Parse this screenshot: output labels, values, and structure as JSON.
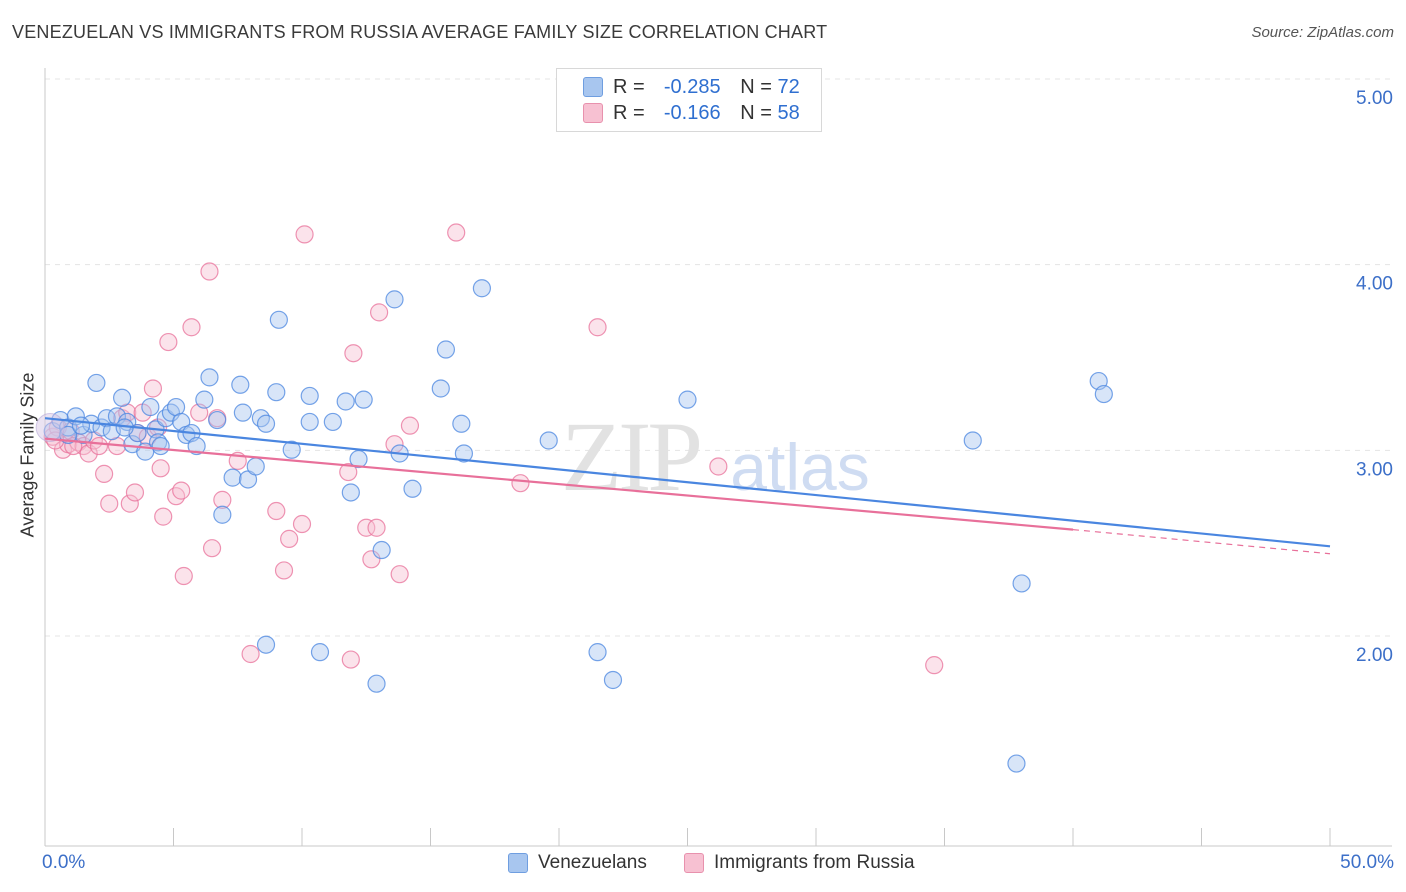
{
  "header": {
    "title": "VENEZUELAN VS IMMIGRANTS FROM RUSSIA AVERAGE FAMILY SIZE CORRELATION CHART",
    "source": "Source: ZipAtlas.com"
  },
  "legend": {
    "rows": [
      {
        "r_label": "R =",
        "r_value": "-0.285",
        "n_label": "N =",
        "n_value": "72",
        "color": "#a8c6ef",
        "border": "#6f9ee0"
      },
      {
        "r_label": "R =",
        "r_value": "-0.166",
        "n_label": "N =",
        "n_value": "58",
        "color": "#f7c1d2",
        "border": "#e891ad"
      }
    ]
  },
  "bottom_legend": [
    {
      "label": "Venezuelans",
      "color": "#a8c6ef",
      "border": "#6f9ee0"
    },
    {
      "label": "Immigrants from Russia",
      "color": "#f7c1d2",
      "border": "#e891ad"
    }
  ],
  "axes": {
    "x_min_label": "0.0%",
    "x_max_label": "50.0%",
    "ylabel": "Average Family Size"
  },
  "watermark": {
    "zip": "ZIP",
    "atlas": "atlas"
  },
  "chart_data": {
    "type": "scatter",
    "title": "VENEZUELAN VS IMMIGRANTS FROM RUSSIA AVERAGE FAMILY SIZE CORRELATION CHART",
    "xlabel": "",
    "ylabel": "Average Family Size",
    "xlim": [
      0,
      50
    ],
    "ylim": [
      1.0,
      5.15
    ],
    "y_ticks": [
      2.0,
      3.0,
      4.0,
      5.0
    ],
    "y_tick_labels": [
      "2.00",
      "3.00",
      "4.00",
      "5.00"
    ],
    "x_tick_labels": [
      "0.0%",
      "50.0%"
    ],
    "grid": true,
    "legend_position": "top-center",
    "series": [
      {
        "name": "Venezuelans",
        "color": "#4a86e0",
        "fill": "#a8c6ef",
        "trend": {
          "x": [
            0,
            50
          ],
          "y": [
            3.27,
            2.58
          ]
        },
        "points": [
          [
            0.3,
            3.2
          ],
          [
            0.6,
            3.26
          ],
          [
            0.9,
            3.22
          ],
          [
            1.2,
            3.28
          ],
          [
            1.5,
            3.18
          ],
          [
            1.8,
            3.24
          ],
          [
            2.0,
            3.46
          ],
          [
            2.2,
            3.22
          ],
          [
            2.4,
            3.27
          ],
          [
            2.6,
            3.2
          ],
          [
            2.8,
            3.28
          ],
          [
            3.0,
            3.38
          ],
          [
            3.2,
            3.25
          ],
          [
            3.4,
            3.13
          ],
          [
            3.6,
            3.19
          ],
          [
            3.9,
            3.09
          ],
          [
            4.1,
            3.33
          ],
          [
            4.3,
            3.21
          ],
          [
            4.4,
            3.14
          ],
          [
            4.7,
            3.27
          ],
          [
            4.9,
            3.3
          ],
          [
            5.1,
            3.33
          ],
          [
            5.3,
            3.25
          ],
          [
            5.5,
            3.18
          ],
          [
            5.7,
            3.19
          ],
          [
            5.9,
            3.12
          ],
          [
            6.2,
            3.37
          ],
          [
            6.4,
            3.49
          ],
          [
            6.7,
            3.26
          ],
          [
            6.9,
            2.75
          ],
          [
            7.3,
            2.95
          ],
          [
            7.6,
            3.45
          ],
          [
            7.7,
            3.3
          ],
          [
            7.9,
            2.94
          ],
          [
            8.2,
            3.01
          ],
          [
            8.4,
            3.27
          ],
          [
            8.6,
            3.24
          ],
          [
            8.6,
            2.05
          ],
          [
            9.0,
            3.41
          ],
          [
            9.1,
            3.8
          ],
          [
            9.6,
            3.1
          ],
          [
            10.3,
            3.39
          ],
          [
            10.3,
            3.25
          ],
          [
            10.7,
            2.01
          ],
          [
            11.2,
            3.25
          ],
          [
            11.7,
            3.36
          ],
          [
            11.9,
            2.87
          ],
          [
            12.2,
            3.05
          ],
          [
            12.4,
            3.37
          ],
          [
            12.9,
            1.84
          ],
          [
            13.1,
            2.56
          ],
          [
            13.6,
            3.91
          ],
          [
            13.8,
            3.08
          ],
          [
            14.3,
            2.89
          ],
          [
            15.6,
            3.64
          ],
          [
            15.4,
            3.43
          ],
          [
            16.2,
            3.24
          ],
          [
            16.3,
            3.08
          ],
          [
            17.0,
            3.97
          ],
          [
            19.6,
            3.15
          ],
          [
            21.5,
            2.01
          ],
          [
            22.1,
            1.86
          ],
          [
            25.0,
            3.37
          ],
          [
            36.1,
            3.15
          ],
          [
            37.8,
            1.41
          ],
          [
            38.0,
            2.38
          ],
          [
            41.0,
            3.47
          ],
          [
            41.2,
            3.4
          ],
          [
            0.9,
            3.18
          ],
          [
            1.4,
            3.23
          ],
          [
            3.1,
            3.22
          ],
          [
            4.5,
            3.12
          ]
        ]
      },
      {
        "name": "Immigrants from Russia",
        "color": "#e8709a",
        "fill": "#f7c1d2",
        "trend": {
          "x": [
            0,
            40
          ],
          "y": [
            3.16,
            2.67
          ]
        },
        "trend_dashed": {
          "x": [
            40,
            50
          ],
          "y": [
            2.67,
            2.54
          ]
        },
        "points": [
          [
            0.3,
            3.17
          ],
          [
            0.5,
            3.22
          ],
          [
            0.7,
            3.1
          ],
          [
            0.9,
            3.13
          ],
          [
            1.0,
            3.2
          ],
          [
            1.3,
            3.14
          ],
          [
            1.5,
            3.12
          ],
          [
            1.7,
            3.08
          ],
          [
            1.9,
            3.15
          ],
          [
            2.1,
            3.12
          ],
          [
            2.3,
            2.97
          ],
          [
            2.5,
            2.81
          ],
          [
            2.8,
            3.12
          ],
          [
            3.0,
            3.27
          ],
          [
            3.2,
            3.3
          ],
          [
            3.3,
            2.81
          ],
          [
            3.5,
            2.87
          ],
          [
            3.6,
            3.19
          ],
          [
            3.8,
            3.3
          ],
          [
            4.0,
            3.17
          ],
          [
            4.2,
            3.43
          ],
          [
            4.4,
            3.22
          ],
          [
            4.5,
            3.0
          ],
          [
            4.6,
            2.74
          ],
          [
            4.8,
            3.68
          ],
          [
            5.1,
            2.85
          ],
          [
            5.3,
            2.88
          ],
          [
            5.4,
            2.42
          ],
          [
            5.7,
            3.76
          ],
          [
            6.0,
            3.3
          ],
          [
            6.4,
            4.06
          ],
          [
            6.5,
            2.57
          ],
          [
            6.7,
            3.27
          ],
          [
            6.9,
            2.83
          ],
          [
            7.5,
            3.04
          ],
          [
            8.0,
            2.0
          ],
          [
            9.0,
            2.77
          ],
          [
            9.3,
            2.45
          ],
          [
            9.5,
            2.62
          ],
          [
            10.1,
            4.26
          ],
          [
            10.0,
            2.7
          ],
          [
            11.8,
            2.98
          ],
          [
            11.9,
            1.97
          ],
          [
            12.0,
            3.62
          ],
          [
            12.5,
            2.68
          ],
          [
            12.7,
            2.51
          ],
          [
            12.9,
            2.68
          ],
          [
            13.0,
            3.84
          ],
          [
            13.6,
            3.13
          ],
          [
            13.8,
            2.43
          ],
          [
            14.2,
            3.23
          ],
          [
            16.0,
            4.27
          ],
          [
            18.5,
            2.92
          ],
          [
            21.5,
            3.76
          ],
          [
            26.2,
            3.01
          ],
          [
            34.6,
            1.94
          ],
          [
            0.4,
            3.15
          ],
          [
            1.1,
            3.12
          ]
        ]
      }
    ]
  }
}
